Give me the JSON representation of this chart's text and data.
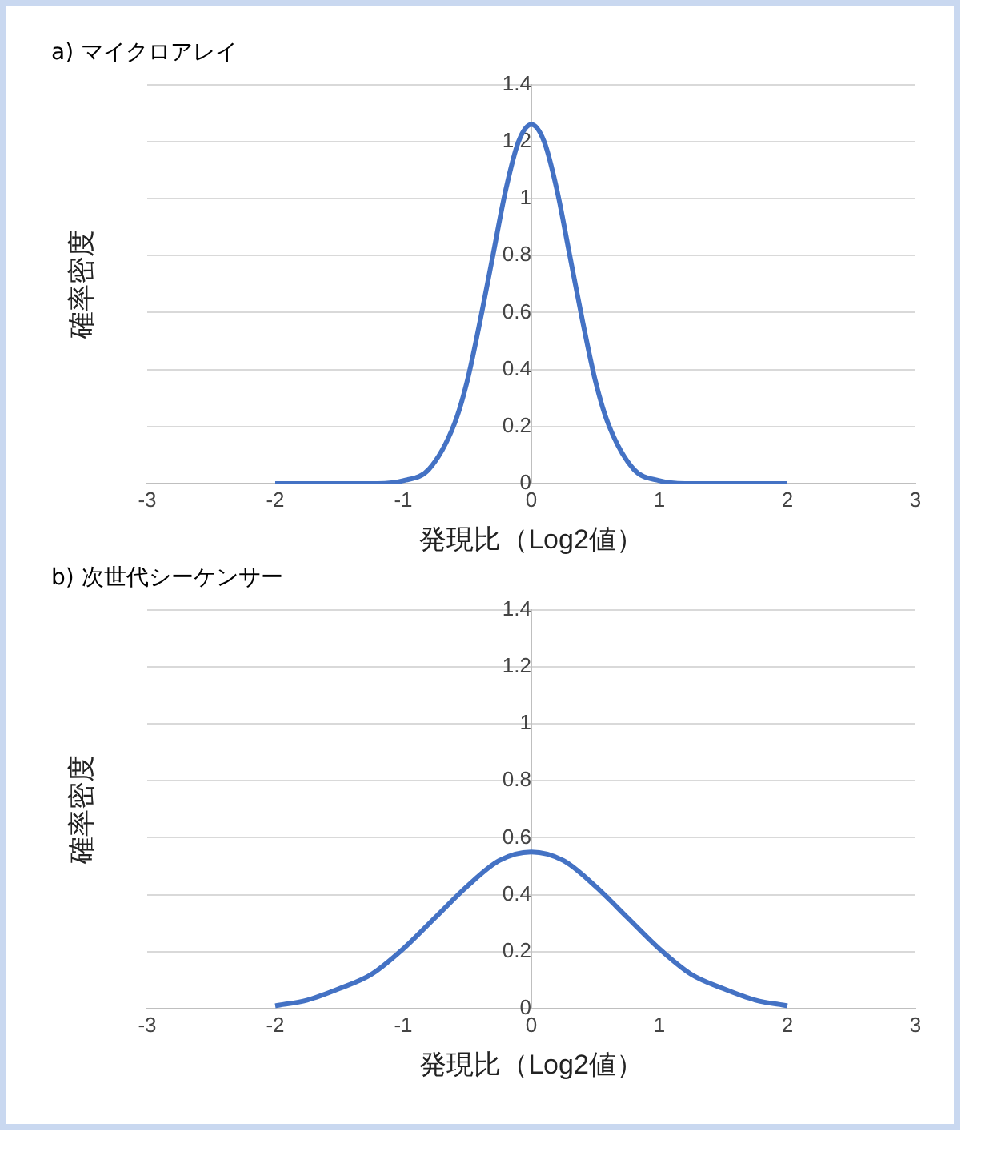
{
  "chart_data": [
    {
      "type": "line",
      "title": "a) マイクロアレイ",
      "xlabel": "発現比（Log2値）",
      "ylabel": "確率密度",
      "series": [
        {
          "color": "#4472c4",
          "x": [
            -2,
            -1.5,
            -1.2,
            -1,
            -0.8,
            -0.6,
            -0.5,
            -0.4,
            -0.3,
            -0.2,
            -0.1,
            0,
            0.1,
            0.2,
            0.3,
            0.4,
            0.5,
            0.6,
            0.8,
            1,
            1.2,
            1.5,
            2
          ],
          "values": [
            0,
            0,
            0,
            0.01,
            0.05,
            0.21,
            0.36,
            0.57,
            0.8,
            1.03,
            1.2,
            1.26,
            1.2,
            1.03,
            0.8,
            0.57,
            0.36,
            0.21,
            0.05,
            0.01,
            0,
            0,
            0
          ]
        }
      ],
      "xlim": [
        -3,
        3
      ],
      "xticks": [
        -3,
        -2,
        -1,
        0,
        1,
        2,
        3
      ],
      "ylim": [
        0,
        1.4
      ],
      "yticks": [
        0,
        0.2,
        0.4,
        0.6,
        0.8,
        1,
        1.2,
        1.4
      ],
      "grid": "y"
    },
    {
      "type": "line",
      "title": "b) 次世代シーケンサー",
      "xlabel": "発現比（Log2値）",
      "ylabel": "確率密度",
      "series": [
        {
          "color": "#4472c4",
          "x": [
            -2,
            -1.75,
            -1.5,
            -1.25,
            -1,
            -0.75,
            -0.5,
            -0.25,
            0,
            0.25,
            0.5,
            0.75,
            1,
            1.25,
            1.5,
            1.75,
            2
          ],
          "values": [
            0.01,
            0.03,
            0.07,
            0.12,
            0.21,
            0.32,
            0.43,
            0.52,
            0.55,
            0.52,
            0.43,
            0.32,
            0.21,
            0.12,
            0.07,
            0.03,
            0.01
          ]
        }
      ],
      "xlim": [
        -3,
        3
      ],
      "xticks": [
        -3,
        -2,
        -1,
        0,
        1,
        2,
        3
      ],
      "ylim": [
        0,
        1.4
      ],
      "yticks": [
        0,
        0.2,
        0.4,
        0.6,
        0.8,
        1,
        1.2,
        1.4
      ],
      "grid": "y"
    }
  ]
}
